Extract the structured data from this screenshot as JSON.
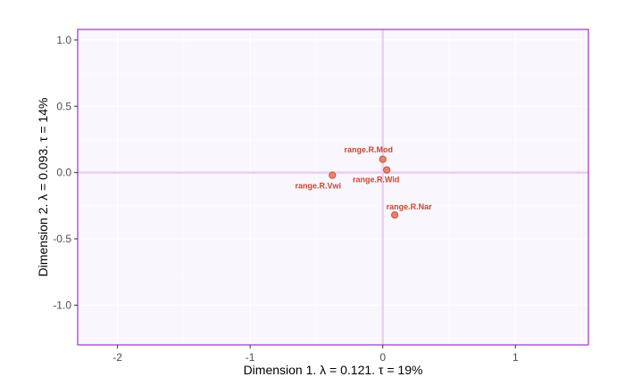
{
  "chart_data": {
    "type": "scatter",
    "title": "",
    "xlabel": "Dimension 1.   λ = 0.121.  τ = 19%",
    "ylabel": "Dimension 2.   λ = 0.093.  τ = 14%",
    "xlim": [
      -2.3,
      1.55
    ],
    "ylim": [
      -1.3,
      1.08
    ],
    "x_ticks": [
      -2,
      -1,
      0,
      1
    ],
    "x_tick_labels": [
      "-2",
      "-1",
      "0",
      "1"
    ],
    "y_ticks": [
      -1.0,
      -0.5,
      0.0,
      0.5,
      1.0
    ],
    "y_tick_labels": [
      "-1.0",
      "-0.5",
      "0.0",
      "0.5",
      "1.0"
    ],
    "grid": true,
    "reference_lines": {
      "x": 0,
      "y": 0
    },
    "points": [
      {
        "label": "range.R.Mod",
        "x": 0.0,
        "y": 0.1
      },
      {
        "label": "range.R.Wid",
        "x": 0.03,
        "y": 0.02
      },
      {
        "label": "range.R.Vwi",
        "x": -0.38,
        "y": -0.02
      },
      {
        "label": "range.R.Nar",
        "x": 0.09,
        "y": -0.32
      }
    ],
    "colors": {
      "panel_background": "#f9f6fe",
      "panel_border": "#9c36c3",
      "grid": "#ffffff",
      "reference_line": "#e7d0f1",
      "point_fill": "#e8826c",
      "point_stroke": "#c8513a",
      "label_text": "#c8472b"
    }
  }
}
